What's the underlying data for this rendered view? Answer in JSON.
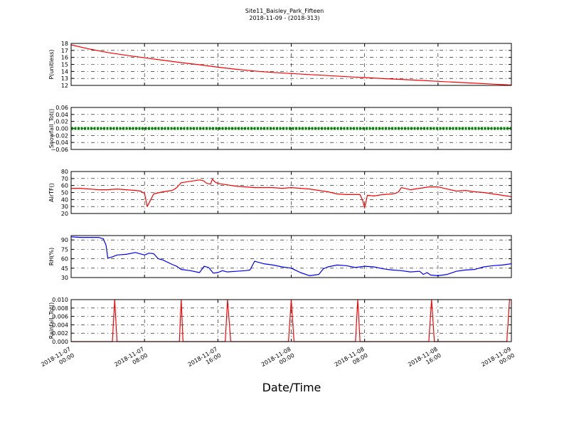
{
  "figure": {
    "title": "Site11_Baisley_Park_Fifteen",
    "subtitle": "2018-11-09 - (2018-313)",
    "xlabel": "Date/Time"
  },
  "chart_data": [
    {
      "type": "line",
      "ylabel": "P(unitless)",
      "ylim": [
        12,
        18
      ],
      "yticks": [
        "12",
        "13",
        "14",
        "15",
        "16",
        "17",
        "18"
      ],
      "grid": true,
      "x_range": [
        "2018-11-07 00:00",
        "2018-11-09 00:00"
      ],
      "series": [
        {
          "color": "#ff0000",
          "x_hours": [
            0,
            2,
            4,
            6,
            8,
            10,
            12,
            14,
            16,
            18,
            20,
            22,
            24,
            26,
            28,
            30,
            32,
            34,
            36,
            38,
            40,
            42,
            44,
            46,
            48
          ],
          "values": [
            17.8,
            17.2,
            16.7,
            16.3,
            15.95,
            15.6,
            15.25,
            14.95,
            14.6,
            14.3,
            14.05,
            13.85,
            13.7,
            13.55,
            13.4,
            13.25,
            13.12,
            12.98,
            12.85,
            12.72,
            12.58,
            12.45,
            12.32,
            12.18,
            12.05
          ]
        }
      ]
    },
    {
      "type": "line",
      "ylabel": "Snowfall_Tot()",
      "ylim": [
        -0.06,
        0.06
      ],
      "yticks": [
        "−0.06",
        "−0.04",
        "−0.02",
        "0.00",
        "0.02",
        "0.04",
        "0.06"
      ],
      "grid": true,
      "series": [
        {
          "color": "#008000",
          "dotted": true,
          "x_hours": [
            0,
            48
          ],
          "values": [
            0,
            0
          ]
        }
      ]
    },
    {
      "type": "line",
      "ylabel": "AirTF()",
      "ylim": [
        20,
        80
      ],
      "yticks": [
        "20",
        "30",
        "40",
        "50",
        "60",
        "70",
        "80"
      ],
      "grid": true,
      "series": [
        {
          "color": "#ff0000",
          "x_hours": [
            0,
            1,
            2,
            3,
            4,
            5,
            6,
            7,
            7.6,
            7.8,
            8.0,
            8.3,
            9,
            10,
            11,
            11.3,
            11.5,
            12,
            13,
            14,
            14.4,
            14.8,
            15.2,
            15.4,
            15.7,
            16,
            17,
            18,
            19,
            20,
            21,
            22,
            23,
            24,
            25,
            26,
            27,
            28,
            29,
            30,
            31,
            31.5,
            31.8,
            32,
            32.3,
            33,
            34,
            35,
            35.4,
            35.7,
            36,
            37,
            37.5,
            38,
            38.5,
            39,
            40,
            41,
            42,
            43,
            44,
            45,
            46,
            47,
            48
          ],
          "values": [
            56,
            56,
            55,
            54,
            54,
            55,
            54,
            53,
            52,
            50,
            49,
            30,
            48,
            51,
            53,
            55,
            57,
            64,
            66,
            68,
            67,
            63,
            62,
            69,
            65,
            63,
            61,
            59,
            58,
            57,
            57,
            57,
            56,
            57,
            56,
            55,
            53,
            51,
            48,
            47,
            47,
            47,
            38,
            28,
            46,
            45,
            47,
            48,
            49,
            51,
            57,
            54,
            55,
            56,
            57,
            58,
            58,
            55,
            52,
            53,
            51,
            50,
            48,
            46,
            44
          ]
        }
      ]
    },
    {
      "type": "line",
      "ylabel": "RH(%)",
      "ylim": [
        30,
        97
      ],
      "yticks": [
        "30",
        "45",
        "60",
        "75",
        "90"
      ],
      "grid": true,
      "series": [
        {
          "color": "#0000ff",
          "x_hours": [
            0,
            1,
            2,
            3,
            3.5,
            3.8,
            4,
            4.5,
            5,
            6,
            7,
            8,
            8.5,
            9,
            9.5,
            10,
            11,
            11.5,
            12,
            13,
            14,
            14.5,
            15,
            15.5,
            16,
            16.5,
            17,
            18,
            19,
            19.5,
            20,
            21,
            22,
            23,
            24,
            25,
            26,
            27,
            27.5,
            28,
            29,
            30,
            31,
            32,
            33,
            34,
            35,
            36,
            37,
            38,
            38.4,
            38.8,
            39.2,
            40,
            41,
            42,
            43,
            44,
            45,
            46,
            47,
            48
          ],
          "values": [
            95,
            94,
            94,
            94,
            92,
            82,
            61,
            63,
            66,
            67,
            70,
            66,
            69,
            68,
            60,
            58,
            51,
            48,
            43,
            41,
            38,
            48,
            46,
            37,
            38,
            41,
            39,
            40,
            41,
            42,
            56,
            52,
            50,
            47,
            45,
            38,
            33,
            35,
            44,
            47,
            50,
            49,
            46,
            48,
            47,
            44,
            42,
            41,
            39,
            40,
            35,
            38,
            34,
            33,
            35,
            40,
            42,
            43,
            47,
            49,
            50,
            52
          ]
        }
      ]
    },
    {
      "type": "line",
      "ylabel": "Rainfall_Tot()",
      "ylim": [
        0,
        0.01
      ],
      "yticks": [
        "0.000",
        "0.002",
        "0.004",
        "0.006",
        "0.008",
        "0.010"
      ],
      "grid": true,
      "series": [
        {
          "color": "#ff0000",
          "x_hours": [
            0,
            4.5,
            4.75,
            5.0,
            11.8,
            12.0,
            12.2,
            16.8,
            17.05,
            17.4,
            23.7,
            24.0,
            24.3,
            31.0,
            31.25,
            31.5,
            39.0,
            39.3,
            39.6,
            47.5,
            47.8,
            48
          ],
          "values": [
            0,
            0,
            0.01,
            0,
            0,
            0.01,
            0,
            0,
            0.01,
            0,
            0,
            0.01,
            0,
            0,
            0.01,
            0,
            0,
            0.01,
            0,
            0,
            0.01,
            0.01
          ]
        }
      ]
    }
  ],
  "x_axis": {
    "ticks": [
      {
        "hours": 0,
        "line1": "2018-11-07",
        "line2": "00:00"
      },
      {
        "hours": 8,
        "line1": "2018-11-07",
        "line2": "08:00"
      },
      {
        "hours": 16,
        "line1": "2018-11-07",
        "line2": "16:00"
      },
      {
        "hours": 24,
        "line1": "2018-11-08",
        "line2": "00:00"
      },
      {
        "hours": 32,
        "line1": "2018-11-08",
        "line2": "08:00"
      },
      {
        "hours": 40,
        "line1": "2018-11-08",
        "line2": "16:00"
      },
      {
        "hours": 48,
        "line1": "2018-11-09",
        "line2": "00:00"
      }
    ]
  }
}
